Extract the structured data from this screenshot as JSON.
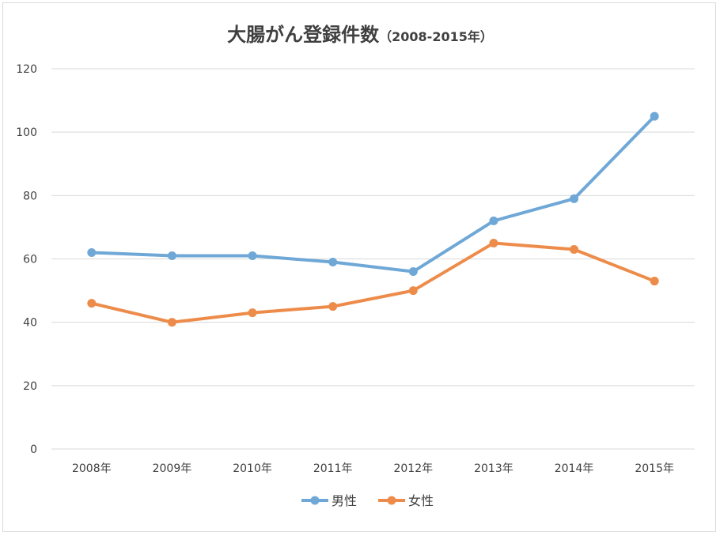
{
  "chart_data": {
    "type": "line",
    "title": "大腸がん登録件数",
    "subtitle": "（2008-2015年）",
    "categories": [
      "2008年",
      "2009年",
      "2010年",
      "2011年",
      "2012年",
      "2013年",
      "2014年",
      "2015年"
    ],
    "series": [
      {
        "name": "男性",
        "color": "#6fa8d6",
        "values": [
          62,
          61,
          61,
          59,
          56,
          72,
          79,
          105
        ]
      },
      {
        "name": "女性",
        "color": "#ed8c4a",
        "values": [
          46,
          40,
          43,
          45,
          50,
          65,
          63,
          53
        ]
      }
    ],
    "ylim": [
      0,
      120
    ],
    "yticks": [
      0,
      20,
      40,
      60,
      80,
      100,
      120
    ],
    "grid": true,
    "legend": "bottom"
  }
}
